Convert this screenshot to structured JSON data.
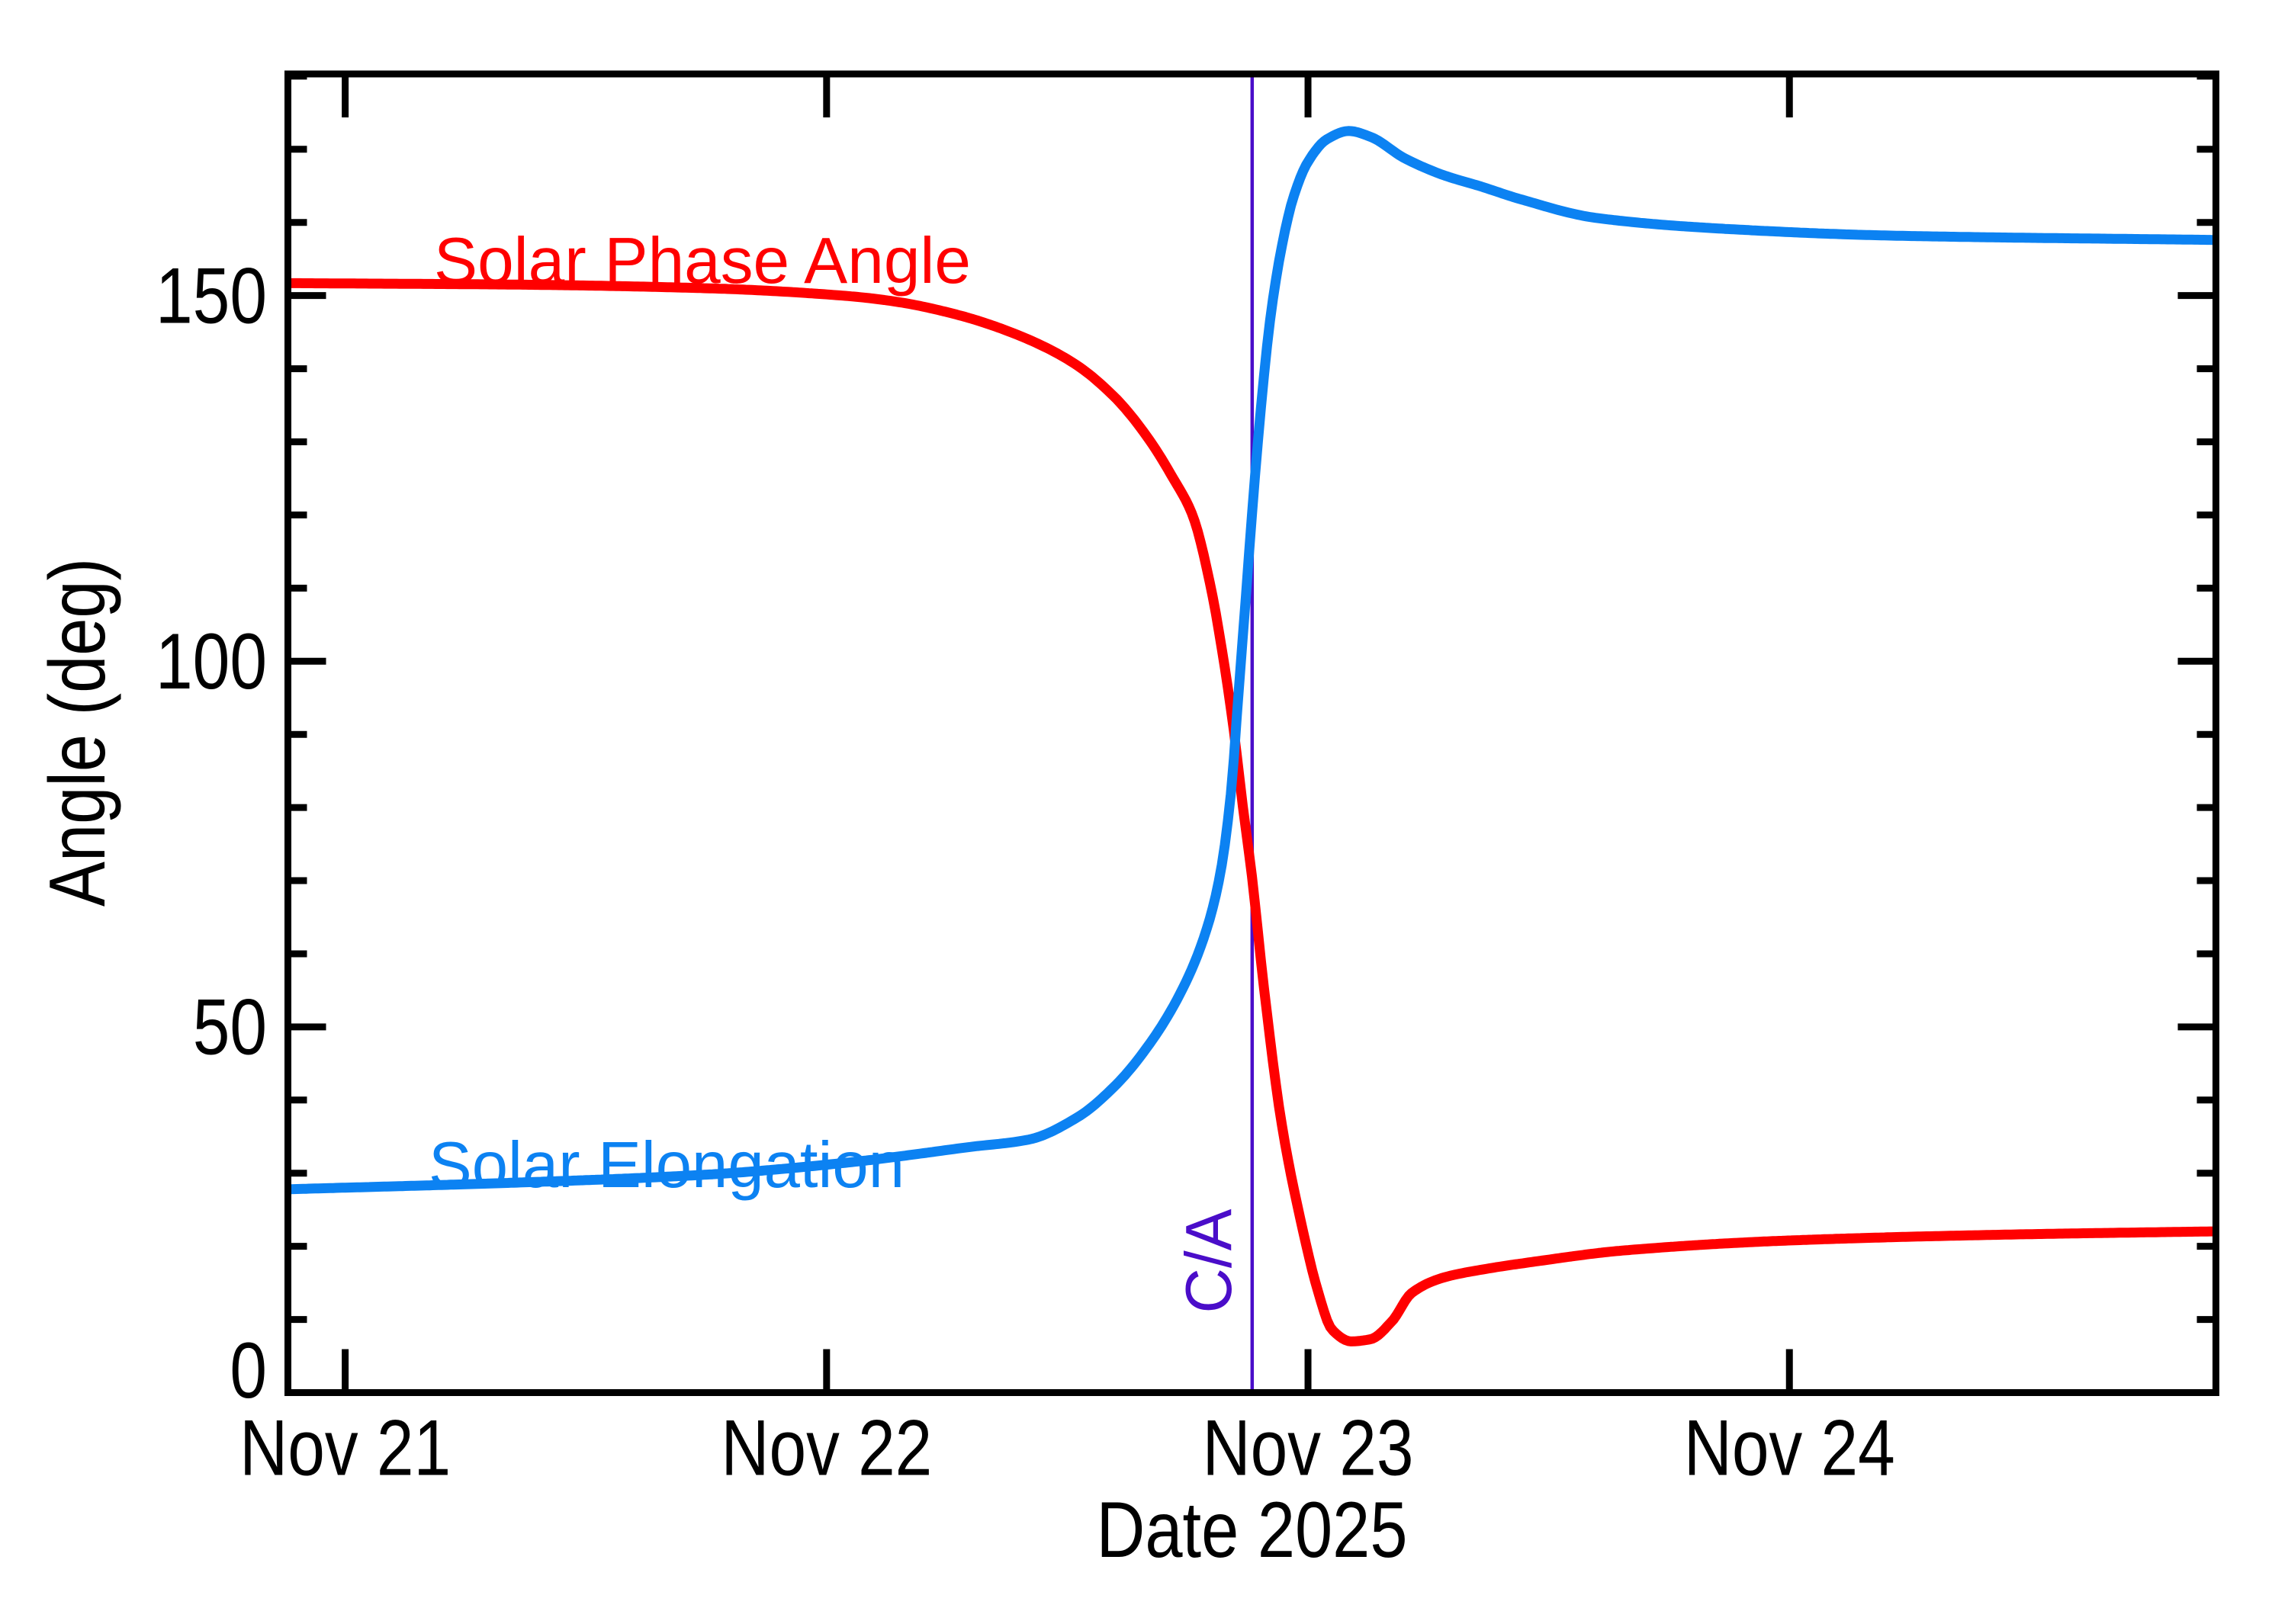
{
  "chart_data": {
    "type": "line",
    "title": "",
    "xlabel": "Date 2025",
    "ylabel": "Angle (deg)",
    "x_units": "days since 2025 Nov 21 00:00 UT",
    "x_range_days": [
      -0.119,
      3.886
    ],
    "x_tick_days": [
      0,
      1,
      2,
      3
    ],
    "x_tick_labels": [
      "Nov 21",
      "Nov 22",
      "Nov 23",
      "Nov 24"
    ],
    "ylim": [
      0,
      180.3
    ],
    "y_major_ticks": [
      0,
      50,
      100,
      150
    ],
    "y_tick_labels": [
      "0",
      "50",
      "100",
      "150"
    ],
    "y_minor_step": 10,
    "grid": false,
    "legend": "labels drawn on curves",
    "background_color": "#ffffff",
    "frame_color": "#000000",
    "annotations": {
      "ca_label": "C/A",
      "ca_day": 1.884,
      "ca_color": "#4a0dc9",
      "ca_line_full_height": true
    },
    "series": [
      {
        "name": "Solar Phase Angle",
        "color": "#ff0000",
        "points": [
          [
            -0.119,
            151.7
          ],
          [
            0.35,
            151.5
          ],
          [
            0.75,
            151.0
          ],
          [
            1.05,
            149.9
          ],
          [
            1.15,
            149.1
          ],
          [
            1.27,
            147.4
          ],
          [
            1.39,
            144.8
          ],
          [
            1.51,
            140.9
          ],
          [
            1.6,
            136.0
          ],
          [
            1.67,
            130.3
          ],
          [
            1.72,
            125.0
          ],
          [
            1.76,
            120.0
          ],
          [
            1.8,
            109.5
          ],
          [
            1.825,
            100.0
          ],
          [
            1.845,
            91.0
          ],
          [
            1.865,
            80.0
          ],
          [
            1.883,
            70.9
          ],
          [
            1.91,
            54.5
          ],
          [
            1.945,
            36.9
          ],
          [
            1.99,
            22.0
          ],
          [
            2.02,
            14.0
          ],
          [
            2.05,
            8.6
          ],
          [
            2.09,
            7.0
          ],
          [
            2.13,
            7.3
          ],
          [
            2.175,
            9.8
          ],
          [
            2.215,
            13.6
          ],
          [
            2.28,
            15.7
          ],
          [
            2.36,
            16.8
          ],
          [
            2.47,
            17.9
          ],
          [
            2.65,
            19.4
          ],
          [
            3.0,
            20.8
          ],
          [
            3.45,
            21.6
          ],
          [
            3.886,
            22.05
          ]
        ]
      },
      {
        "name": "Solar Elongation",
        "color": "#0c82f2",
        "points": [
          [
            -0.119,
            27.8
          ],
          [
            0.35,
            28.7
          ],
          [
            0.75,
            29.8
          ],
          [
            1.05,
            31.5
          ],
          [
            1.3,
            33.6
          ],
          [
            1.42,
            34.6
          ],
          [
            1.52,
            37.6
          ],
          [
            1.6,
            42.0
          ],
          [
            1.67,
            47.6
          ],
          [
            1.73,
            54.0
          ],
          [
            1.78,
            61.5
          ],
          [
            1.815,
            70.0
          ],
          [
            1.84,
            82.0
          ],
          [
            1.855,
            95.0
          ],
          [
            1.87,
            108.0
          ],
          [
            1.885,
            121.2
          ],
          [
            1.9,
            133.0
          ],
          [
            1.92,
            146.0
          ],
          [
            1.945,
            156.5
          ],
          [
            1.97,
            163.5
          ],
          [
            2.0,
            168.3
          ],
          [
            2.04,
            171.4
          ],
          [
            2.085,
            172.5
          ],
          [
            2.13,
            171.7
          ],
          [
            2.2,
            168.8
          ],
          [
            2.28,
            166.5
          ],
          [
            2.36,
            164.9
          ],
          [
            2.44,
            163.2
          ],
          [
            2.6,
            160.6
          ],
          [
            2.9,
            159.0
          ],
          [
            3.21,
            158.2
          ],
          [
            3.886,
            157.6
          ]
        ]
      }
    ]
  }
}
